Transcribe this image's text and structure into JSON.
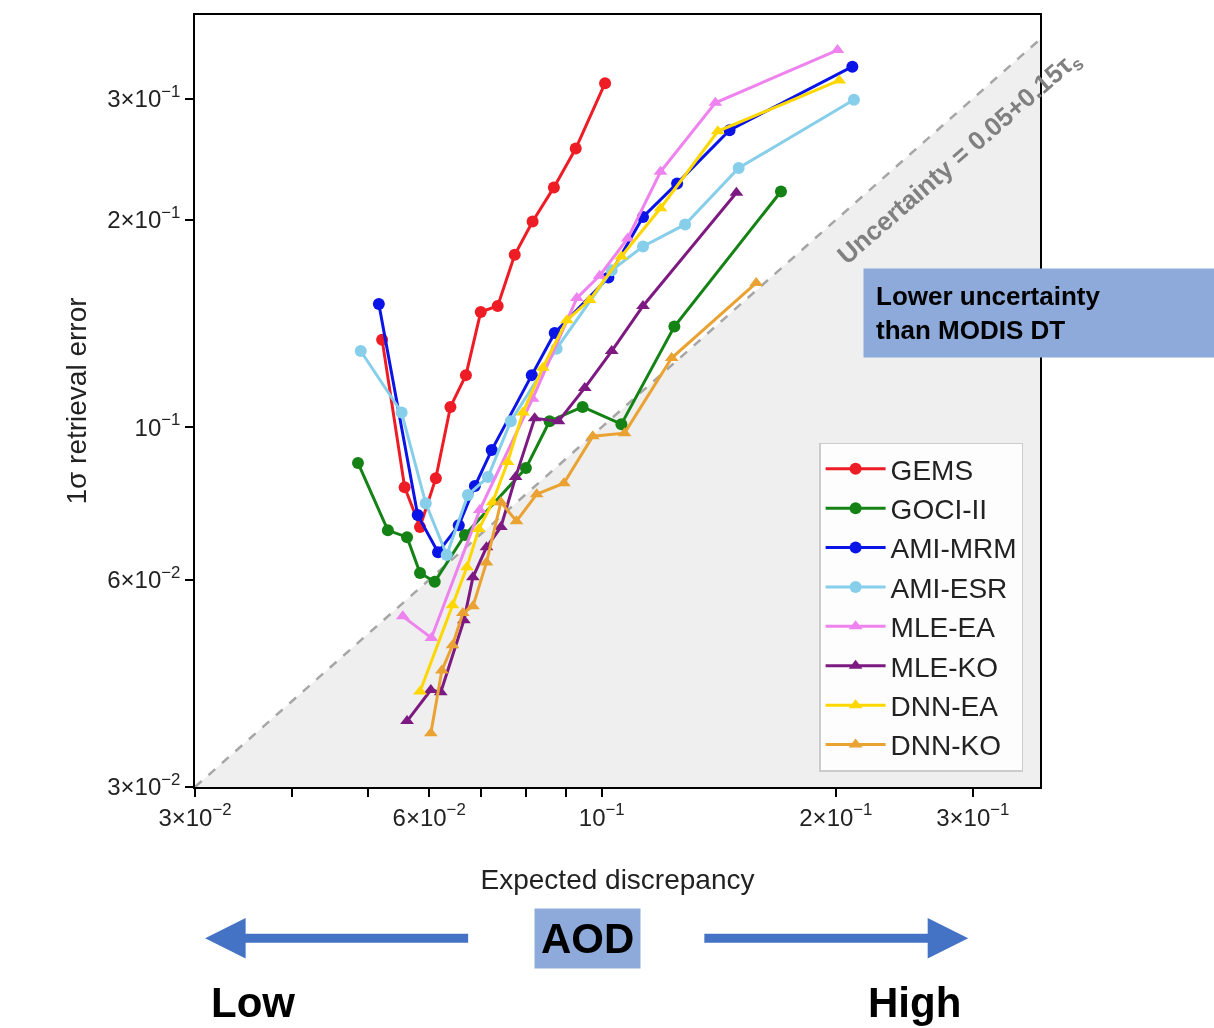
{
  "chart_data": {
    "type": "line",
    "xlabel": "Expected discrepancy",
    "ylabel": "1σ retrieval error",
    "log": "xy",
    "grid": false,
    "legend": "bottom right",
    "xlim": [
      0.03,
      0.366
    ],
    "ylim": [
      0.03,
      0.397
    ],
    "xticks": [
      {
        "value": 0.03,
        "label": "3×10$^{−2}$"
      },
      {
        "value": 0.04,
        "label": null
      },
      {
        "value": 0.05,
        "label": null
      },
      {
        "value": 0.06,
        "label": "6×10$^{−2}$"
      },
      {
        "value": 0.07,
        "label": null
      },
      {
        "value": 0.08,
        "label": null
      },
      {
        "value": 0.09,
        "label": null
      },
      {
        "value": 0.1,
        "label": "10$^{−1}$"
      },
      {
        "value": 0.2,
        "label": "2×10$^{−1}$"
      },
      {
        "value": 0.3,
        "label": "3×10$^{−1}$"
      }
    ],
    "yticks": [
      {
        "value": 0.03,
        "label": "3×10$^{−2}$"
      },
      {
        "value": 0.06,
        "label": "6×10$^{−2}$"
      },
      {
        "value": 0.1,
        "label": "10$^{−1}$"
      },
      {
        "value": 0.2,
        "label": "2×10$^{−1}$"
      },
      {
        "value": 0.3,
        "label": "3×10$^{−1}$"
      }
    ],
    "annotations": [
      "Uncertainty = 0.05+0.15τ$_{s}$",
      "Lower uncertainty than MODIS DT",
      "AOD",
      "Low",
      "High"
    ],
    "series": [
      {
        "type": "area",
        "color": "#a6a6a6",
        "line_style": "dashed",
        "marker": "none",
        "x": [
          0.03,
          0.366
        ],
        "values": [
          0.03,
          0.366
        ]
      },
      {
        "name": "GEMS",
        "color": "#ee1c25",
        "marker": "circle",
        "x": [
          0.0522,
          0.0558,
          0.0584,
          0.0612,
          0.0639,
          0.0669,
          0.0699,
          0.0735,
          0.0773,
          0.0815,
          0.0868,
          0.0926,
          0.101
        ],
        "values": [
          0.134,
          0.0818,
          0.0716,
          0.0843,
          0.107,
          0.119,
          0.147,
          0.15,
          0.178,
          0.199,
          0.223,
          0.254,
          0.316
        ]
      },
      {
        "name": "GOCI-II",
        "color": "#148214",
        "marker": "circle",
        "x": [
          0.0486,
          0.0531,
          0.0562,
          0.0584,
          0.061,
          0.0667,
          0.0799,
          0.0857,
          0.0945,
          0.106,
          0.124,
          0.17
        ],
        "values": [
          0.0887,
          0.0708,
          0.0692,
          0.0614,
          0.0596,
          0.0697,
          0.0872,
          0.102,
          0.107,
          0.101,
          0.14,
          0.22
        ]
      },
      {
        "name": "AMI-MRM",
        "color": "#0a14e6",
        "marker": "circle",
        "x": [
          0.0517,
          0.058,
          0.0616,
          0.0655,
          0.0687,
          0.0722,
          0.0813,
          0.087,
          0.102,
          0.113,
          0.125,
          0.146,
          0.21
        ],
        "values": [
          0.151,
          0.0745,
          0.0658,
          0.072,
          0.0821,
          0.0926,
          0.119,
          0.137,
          0.165,
          0.202,
          0.226,
          0.27,
          0.334
        ]
      },
      {
        "name": "AMI-ESR",
        "color": "#87ceeb",
        "marker": "circle",
        "x": [
          0.049,
          0.0553,
          0.0594,
          0.0632,
          0.0673,
          0.0714,
          0.0764,
          0.0875,
          0.103,
          0.113,
          0.128,
          0.15,
          0.211
        ],
        "values": [
          0.129,
          0.105,
          0.0775,
          0.0652,
          0.0797,
          0.0846,
          0.102,
          0.13,
          0.169,
          0.183,
          0.197,
          0.238,
          0.299
        ]
      },
      {
        "name": "MLE-EA",
        "color": "#ee82ee",
        "marker": "triangle",
        "x": [
          0.0555,
          0.0604,
          0.0697,
          0.0815,
          0.0929,
          0.0994,
          0.108,
          0.119,
          0.14,
          0.201
        ],
        "values": [
          0.0531,
          0.0494,
          0.0758,
          0.11,
          0.154,
          0.166,
          0.188,
          0.235,
          0.296,
          0.353
        ]
      },
      {
        "name": "MLE-KO",
        "color": "#7d1a82",
        "marker": "triangle",
        "x": [
          0.0562,
          0.0603,
          0.0621,
          0.0665,
          0.0683,
          0.0711,
          0.0742,
          0.0775,
          0.082,
          0.088,
          0.0951,
          0.103,
          0.113,
          0.149
        ],
        "values": [
          0.0374,
          0.0415,
          0.0412,
          0.0524,
          0.0605,
          0.0669,
          0.0716,
          0.0846,
          0.103,
          0.102,
          0.114,
          0.129,
          0.15,
          0.219
        ]
      },
      {
        "name": "DNN-EA",
        "color": "#ffd700",
        "marker": "triangle",
        "x": [
          0.0584,
          0.0643,
          0.0671,
          0.0695,
          0.0724,
          0.0757,
          0.0792,
          0.084,
          0.0902,
          0.0965,
          0.106,
          0.119,
          0.141,
          0.202
        ],
        "values": [
          0.0413,
          0.0551,
          0.0626,
          0.0711,
          0.0778,
          0.089,
          0.105,
          0.122,
          0.143,
          0.153,
          0.177,
          0.208,
          0.269,
          0.319
        ]
      },
      {
        "name": "DNN-KO",
        "color": "#eaa232",
        "marker": "triangle",
        "x": [
          0.0603,
          0.0623,
          0.0643,
          0.0663,
          0.0683,
          0.0711,
          0.0742,
          0.0777,
          0.0825,
          0.0894,
          0.0974,
          0.107,
          0.123,
          0.158
        ],
        "values": [
          0.0359,
          0.0443,
          0.0482,
          0.0537,
          0.0549,
          0.0636,
          0.0778,
          0.073,
          0.0799,
          0.0829,
          0.097,
          0.098,
          0.126,
          0.162
        ]
      }
    ]
  }
}
